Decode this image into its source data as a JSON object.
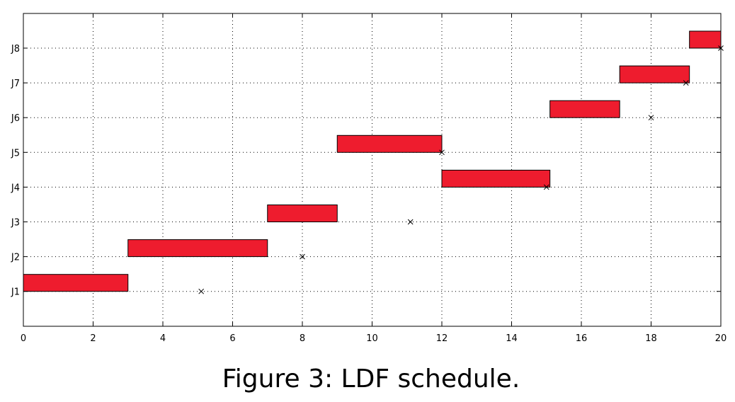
{
  "caption": "Figure 3: LDF schedule.",
  "chart_data": {
    "type": "gantt",
    "xlim": [
      0,
      20
    ],
    "x_ticks": [
      0,
      2,
      4,
      6,
      8,
      10,
      12,
      14,
      16,
      18,
      20
    ],
    "y_categories": [
      "J1",
      "J2",
      "J3",
      "J4",
      "J5",
      "J6",
      "J7",
      "J8"
    ],
    "grid": true,
    "bar_color": "#ee1c2e",
    "bars": [
      {
        "job": "J1",
        "start": 0,
        "end": 3
      },
      {
        "job": "J2",
        "start": 3,
        "end": 7
      },
      {
        "job": "J3",
        "start": 7,
        "end": 9
      },
      {
        "job": "J5",
        "start": 9,
        "end": 12
      },
      {
        "job": "J4",
        "start": 12,
        "end": 15.1
      },
      {
        "job": "J6",
        "start": 15.1,
        "end": 17.1
      },
      {
        "job": "J7",
        "start": 17.1,
        "end": 19.1
      },
      {
        "job": "J8",
        "start": 19.1,
        "end": 20
      }
    ],
    "deadlines": [
      {
        "job": "J1",
        "x": 5.1
      },
      {
        "job": "J2",
        "x": 8
      },
      {
        "job": "J3",
        "x": 11.1
      },
      {
        "job": "J4",
        "x": 15
      },
      {
        "job": "J5",
        "x": 12
      },
      {
        "job": "J6",
        "x": 18
      },
      {
        "job": "J7",
        "x": 19
      },
      {
        "job": "J8",
        "x": 20
      }
    ]
  }
}
